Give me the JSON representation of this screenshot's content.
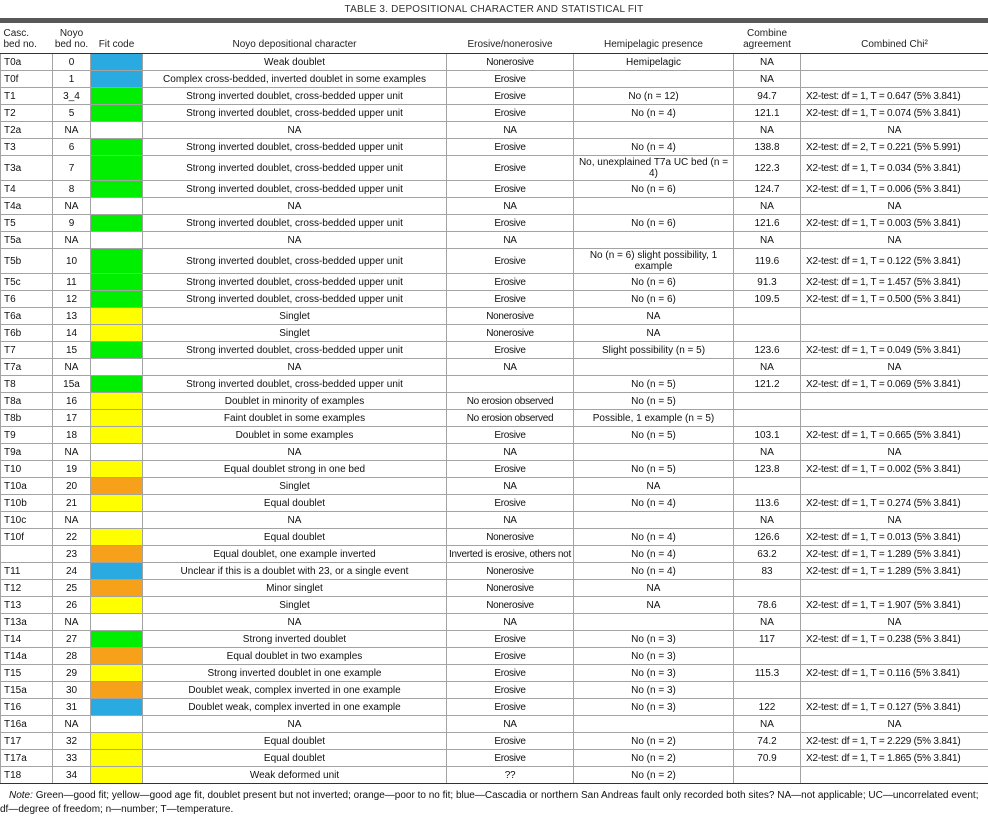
{
  "title": "TABLE 3. DEPOSITIONAL CHARACTER AND STATISTICAL FIT",
  "fit_colors": {
    "green": "#00ee00",
    "yellow": "#ffff00",
    "orange": "#f7a01a",
    "blue": "#29abe2"
  },
  "table": {
    "columns": [
      {
        "key": "casc",
        "label": "Casc.\nbed no."
      },
      {
        "key": "noyo",
        "label": "Noyo\nbed no."
      },
      {
        "key": "fit",
        "label": "Fit code"
      },
      {
        "key": "depo",
        "label": "Noyo depositional character"
      },
      {
        "key": "erosive",
        "label": "Erosive/nonerosive"
      },
      {
        "key": "hemi",
        "label": "Hemipelagic presence"
      },
      {
        "key": "combine",
        "label": "Combine\nagreement"
      },
      {
        "key": "chi",
        "label": "Combined Chi²"
      }
    ],
    "rows": [
      {
        "casc": "T0a",
        "noyo": "0",
        "fit": "blue",
        "depo": "Weak doublet",
        "erosive": "Nonerosive",
        "hemi": "Hemipelagic",
        "combine": "NA",
        "chi": ""
      },
      {
        "casc": "T0f",
        "noyo": "1",
        "fit": "blue",
        "depo": "Complex cross-bedded, inverted doublet in some examples",
        "erosive": "Erosive",
        "hemi": "",
        "combine": "NA",
        "chi": ""
      },
      {
        "casc": "T1",
        "noyo": "3_4",
        "fit": "green",
        "depo": "Strong inverted doublet, cross-bedded upper unit",
        "erosive": "Erosive",
        "hemi": "No (n = 12)",
        "combine": "94.7",
        "chi": "X2-test: df = 1, T = 0.647 (5% 3.841)"
      },
      {
        "casc": "T2",
        "noyo": "5",
        "fit": "green",
        "depo": "Strong inverted doublet, cross-bedded upper unit",
        "erosive": "Erosive",
        "hemi": "No (n = 4)",
        "combine": "121.1",
        "chi": "X2-test: df = 1, T = 0.074 (5% 3.841)"
      },
      {
        "casc": "T2a",
        "noyo": "NA",
        "fit": "none",
        "depo": "NA",
        "erosive": "NA",
        "hemi": "",
        "combine": "NA",
        "chi": "NA"
      },
      {
        "casc": "T3",
        "noyo": "6",
        "fit": "green",
        "depo": "Strong inverted doublet, cross-bedded upper unit",
        "erosive": "Erosive",
        "hemi": "No (n = 4)",
        "combine": "138.8",
        "chi": "X2-test: df = 2, T = 0.221 (5% 5.991)"
      },
      {
        "casc": "T3a",
        "noyo": "7",
        "fit": "green",
        "depo": "Strong inverted doublet, cross-bedded upper unit",
        "erosive": "Erosive",
        "hemi": "No, unexplained T7a UC bed (n = 4)",
        "combine": "122.3",
        "chi": "X2-test: df = 1, T = 0.034 (5% 3.841)"
      },
      {
        "casc": "T4",
        "noyo": "8",
        "fit": "green",
        "depo": "Strong inverted doublet, cross-bedded upper unit",
        "erosive": "Erosive",
        "hemi": "No (n = 6)",
        "combine": "124.7",
        "chi": "X2-test: df = 1, T = 0.006 (5% 3.841)"
      },
      {
        "casc": "T4a",
        "noyo": "NA",
        "fit": "none",
        "depo": "NA",
        "erosive": "NA",
        "hemi": "",
        "combine": "NA",
        "chi": "NA"
      },
      {
        "casc": "T5",
        "noyo": "9",
        "fit": "green",
        "depo": "Strong inverted doublet, cross-bedded upper unit",
        "erosive": "Erosive",
        "hemi": "No (n = 6)",
        "combine": "121.6",
        "chi": "X2-test: df = 1, T = 0.003 (5% 3.841)"
      },
      {
        "casc": "T5a",
        "noyo": "NA",
        "fit": "none",
        "depo": "NA",
        "erosive": "NA",
        "hemi": "",
        "combine": "NA",
        "chi": "NA"
      },
      {
        "casc": "T5b",
        "noyo": "10",
        "fit": "green",
        "depo": "Strong inverted doublet, cross-bedded upper unit",
        "erosive": "Erosive",
        "hemi": "No (n = 6) slight possibility, 1 example",
        "combine": "119.6",
        "chi": "X2-test: df = 1, T = 0.122 (5% 3.841)"
      },
      {
        "casc": "T5c",
        "noyo": "11",
        "fit": "green",
        "depo": "Strong inverted doublet, cross-bedded upper unit",
        "erosive": "Erosive",
        "hemi": "No (n = 6)",
        "combine": "91.3",
        "chi": "X2-test: df = 1, T = 1.457 (5% 3.841)"
      },
      {
        "casc": "T6",
        "noyo": "12",
        "fit": "green",
        "depo": "Strong inverted doublet, cross-bedded upper unit",
        "erosive": "Erosive",
        "hemi": "No (n = 6)",
        "combine": "109.5",
        "chi": "X2-test: df = 1, T = 0.500 (5% 3.841)"
      },
      {
        "casc": "T6a",
        "noyo": "13",
        "fit": "yellow",
        "depo": "Singlet",
        "erosive": "Nonerosive",
        "hemi": "NA",
        "combine": "",
        "chi": ""
      },
      {
        "casc": "T6b",
        "noyo": "14",
        "fit": "yellow",
        "depo": "Singlet",
        "erosive": "Nonerosive",
        "hemi": "NA",
        "combine": "",
        "chi": ""
      },
      {
        "casc": "T7",
        "noyo": "15",
        "fit": "green",
        "depo": "Strong inverted doublet, cross-bedded upper unit",
        "erosive": "Erosive",
        "hemi": "Slight possibility (n = 5)",
        "combine": "123.6",
        "chi": "X2-test: df = 1, T = 0.049 (5% 3.841)"
      },
      {
        "casc": "T7a",
        "noyo": "NA",
        "fit": "none",
        "depo": "NA",
        "erosive": "NA",
        "hemi": "",
        "combine": "NA",
        "chi": "NA"
      },
      {
        "casc": "T8",
        "noyo": "15a",
        "fit": "green",
        "depo": "Strong inverted doublet, cross-bedded upper unit",
        "erosive": "",
        "hemi": "No (n = 5)",
        "combine": "121.2",
        "chi": "X2-test: df = 1, T = 0.069 (5% 3.841)"
      },
      {
        "casc": "T8a",
        "noyo": "16",
        "fit": "yellow",
        "depo": "Doublet in minority of examples",
        "erosive": "No erosion observed",
        "hemi": "No (n = 5)",
        "combine": "",
        "chi": ""
      },
      {
        "casc": "T8b",
        "noyo": "17",
        "fit": "yellow",
        "depo": "Faint doublet in some examples",
        "erosive": "No erosion observed",
        "hemi": "Possible, 1 example (n = 5)",
        "combine": "",
        "chi": ""
      },
      {
        "casc": "T9",
        "noyo": "18",
        "fit": "yellow",
        "depo": "Doublet in some examples",
        "erosive": "Erosive",
        "hemi": "No (n = 5)",
        "combine": "103.1",
        "chi": "X2-test: df = 1, T = 0.665 (5% 3.841)"
      },
      {
        "casc": "T9a",
        "noyo": "NA",
        "fit": "none",
        "depo": "NA",
        "erosive": "NA",
        "hemi": "",
        "combine": "NA",
        "chi": "NA"
      },
      {
        "casc": "T10",
        "noyo": "19",
        "fit": "yellow",
        "depo": "Equal doublet strong in one bed",
        "erosive": "Erosive",
        "hemi": "No (n = 5)",
        "combine": "123.8",
        "chi": "X2-test: df = 1, T = 0.002 (5% 3.841)"
      },
      {
        "casc": "T10a",
        "noyo": "20",
        "fit": "orange",
        "depo": "Singlet",
        "erosive": "NA",
        "hemi": "NA",
        "combine": "",
        "chi": ""
      },
      {
        "casc": "T10b",
        "noyo": "21",
        "fit": "yellow",
        "depo": "Equal doublet",
        "erosive": "Erosive",
        "hemi": "No (n = 4)",
        "combine": "113.6",
        "chi": "X2-test: df = 1, T = 0.274 (5% 3.841)"
      },
      {
        "casc": "T10c",
        "noyo": "NA",
        "fit": "none",
        "depo": "NA",
        "erosive": "NA",
        "hemi": "",
        "combine": "NA",
        "chi": "NA"
      },
      {
        "casc": "T10f",
        "noyo": "22",
        "fit": "yellow",
        "depo": "Equal doublet",
        "erosive": "Nonerosive",
        "hemi": "No (n = 4)",
        "combine": "126.6",
        "chi": "X2-test: df = 1, T = 0.013 (5% 3.841)"
      },
      {
        "casc": "",
        "noyo": "23",
        "fit": "orange",
        "depo": "Equal doublet, one example inverted",
        "erosive": "Inverted is erosive, others not",
        "hemi": "No (n = 4)",
        "combine": "63.2",
        "chi": "X2-test: df = 1, T = 1.289 (5% 3.841)"
      },
      {
        "casc": "T11",
        "noyo": "24",
        "fit": "blue",
        "depo": "Unclear if this is a doublet with 23, or a single event",
        "erosive": "Nonerosive",
        "hemi": "No (n = 4)",
        "combine": "83",
        "chi": "X2-test: df = 1, T = 1.289  (5% 3.841)"
      },
      {
        "casc": "T12",
        "noyo": "25",
        "fit": "orange",
        "depo": "Minor singlet",
        "erosive": "Nonerosive",
        "hemi": "NA",
        "combine": "",
        "chi": ""
      },
      {
        "casc": "T13",
        "noyo": "26",
        "fit": "yellow",
        "depo": "Singlet",
        "erosive": "Nonerosive",
        "hemi": "NA",
        "combine": "78.6",
        "chi": "X2-test: df = 1, T = 1.907 (5% 3.841)"
      },
      {
        "casc": "T13a",
        "noyo": "NA",
        "fit": "none",
        "depo": "NA",
        "erosive": "NA",
        "hemi": "",
        "combine": "NA",
        "chi": "NA"
      },
      {
        "casc": "T14",
        "noyo": "27",
        "fit": "green",
        "depo": "Strong inverted doublet",
        "erosive": "Erosive",
        "hemi": "No (n = 3)",
        "combine": "117",
        "chi": "X2-test: df = 1, T = 0.238 (5% 3.841)"
      },
      {
        "casc": "T14a",
        "noyo": "28",
        "fit": "orange",
        "depo": "Equal doublet in two examples",
        "erosive": "Erosive",
        "hemi": "No (n = 3)",
        "combine": "",
        "chi": ""
      },
      {
        "casc": "T15",
        "noyo": "29",
        "fit": "yellow",
        "depo": "Strong inverted doublet in one example",
        "erosive": "Erosive",
        "hemi": "No (n = 3)",
        "combine": "115.3",
        "chi": "X2-test: df = 1, T = 0.116 (5% 3.841)"
      },
      {
        "casc": "T15a",
        "noyo": "30",
        "fit": "orange",
        "depo": "Doublet weak, complex inverted in one example",
        "erosive": "Erosive",
        "hemi": "No (n = 3)",
        "combine": "",
        "chi": ""
      },
      {
        "casc": "T16",
        "noyo": "31",
        "fit": "blue",
        "depo": "Doublet weak, complex inverted in one example",
        "erosive": "Erosive",
        "hemi": "No (n = 3)",
        "combine": "122",
        "chi": "X2-test: df = 1, T = 0.127 (5% 3.841)"
      },
      {
        "casc": "T16a",
        "noyo": "NA",
        "fit": "none",
        "depo": "NA",
        "erosive": "NA",
        "hemi": "",
        "combine": "NA",
        "chi": "NA"
      },
      {
        "casc": "T17",
        "noyo": "32",
        "fit": "yellow",
        "depo": "Equal doublet",
        "erosive": "Erosive",
        "hemi": "No (n = 2)",
        "combine": "74.2",
        "chi": "X2-test: df = 1, T = 2.229 (5% 3.841)"
      },
      {
        "casc": "T17a",
        "noyo": "33",
        "fit": "yellow",
        "depo": "Equal doublet",
        "erosive": "Erosive",
        "hemi": "No (n = 2)",
        "combine": "70.9",
        "chi": "X2-test: df = 1, T = 1.865 (5% 3.841)"
      },
      {
        "casc": "T18",
        "noyo": "34",
        "fit": "yellow",
        "depo": "Weak deformed unit",
        "erosive": "??",
        "hemi": "No (n =  2)",
        "combine": "",
        "chi": ""
      }
    ]
  },
  "note": {
    "label": "Note:",
    "text": "Green—good fit; yellow—good age fit, doublet present but not inverted; orange—poor to no fit; blue—Cascadia or northern San Andreas fault only recorded both sites? NA—not applicable; UC—uncorrelated event; df—degree of freedom; n—number; T—temperature."
  }
}
